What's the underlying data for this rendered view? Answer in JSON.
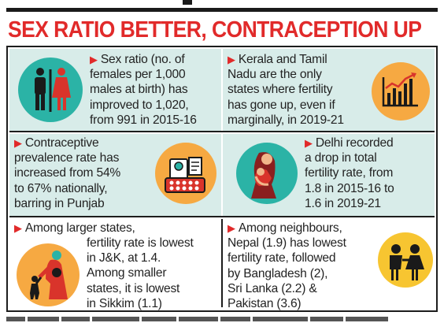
{
  "headline": "SEX RATIO BETTER, CONTRACEPTION UP",
  "items": [
    {
      "lead": "Sex ratio (no. of",
      "rest": "females per 1,000\nmales at birth) has\nimproved to 1,020,\nfrom 991 in 2015-16",
      "icon": "male-female-restroom-icon"
    },
    {
      "lead": "Kerala and Tamil",
      "rest": "Nadu are the only\nstates where fertility\nhas gone up, even if\nmarginally, in 2019-21",
      "icon": "bar-chart-trend-icon"
    },
    {
      "lead": "Contraceptive",
      "rest": "prevalence rate has\nincreased from 54%\nto 67% nationally,\nbarring in Punjab",
      "icon": "contraceptive-pills-icon"
    },
    {
      "lead": "Delhi recorded",
      "rest": "a drop in total\nfertility rate, from\n1.8 in 2015-16 to\n1.6 in 2019-21",
      "icon": "mother-child-icon"
    },
    {
      "lead": "Among larger states,",
      "rest": "fertility rate is lowest\nin J&K, at 1.4.\nAmong smaller\nstates, it is lowest\nin Sikkim (1.1)",
      "icon": "mother-walking-child-icon"
    },
    {
      "lead": "Among neighbours,",
      "rest": "Nepal (1.9) has lowest\nfertility rate, followed\nby Bangladesh (2),\nSri Lanka (2.2) &\nPakistan (3.6)",
      "icon": "two-children-icon"
    }
  ],
  "colors": {
    "accent": "#e12a2a",
    "panel_bg": "#d8ece9",
    "icon_orange": "#f6a942",
    "icon_teal": "#2bb3a6",
    "icon_yellow": "#f7c531"
  }
}
